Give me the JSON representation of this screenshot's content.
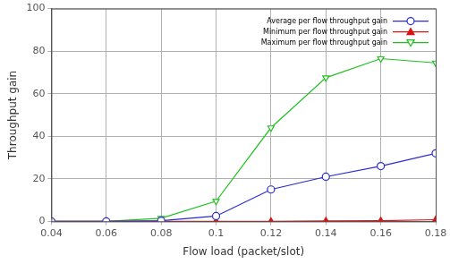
{
  "chart_data": {
    "type": "line",
    "x_label": "Flow load (packet/slot)",
    "y_label": "Throughput gain",
    "x": [
      0.04,
      0.06,
      0.08,
      0.1,
      0.12,
      0.14,
      0.16,
      0.18
    ],
    "series": [
      {
        "name": "Average per flow throughput gain",
        "color": "#2a2ad0",
        "marker": "circle",
        "values": [
          0,
          0,
          0.3,
          2.5,
          15,
          21,
          26,
          32
        ]
      },
      {
        "name": "Minimum per flow throughput gain",
        "color": "#e01010",
        "marker": "triangle",
        "values": [
          0,
          0,
          0,
          0,
          0,
          0.2,
          0.3,
          0.8
        ]
      },
      {
        "name": "Maximum per flow throughput gain",
        "color": "#20c020",
        "marker": "triangle_down",
        "values": [
          0,
          0,
          1.5,
          9.5,
          44,
          67.5,
          76.5,
          74.5
        ]
      }
    ],
    "xlim": [
      0.04,
      0.18
    ],
    "xticks": [
      0.04,
      0.06,
      0.08,
      0.1,
      0.12,
      0.14,
      0.16,
      0.18
    ],
    "ylim": [
      0,
      100
    ],
    "yticks": [
      0,
      20,
      40,
      60,
      80,
      100
    ],
    "grid": true,
    "legend": "upper right"
  }
}
